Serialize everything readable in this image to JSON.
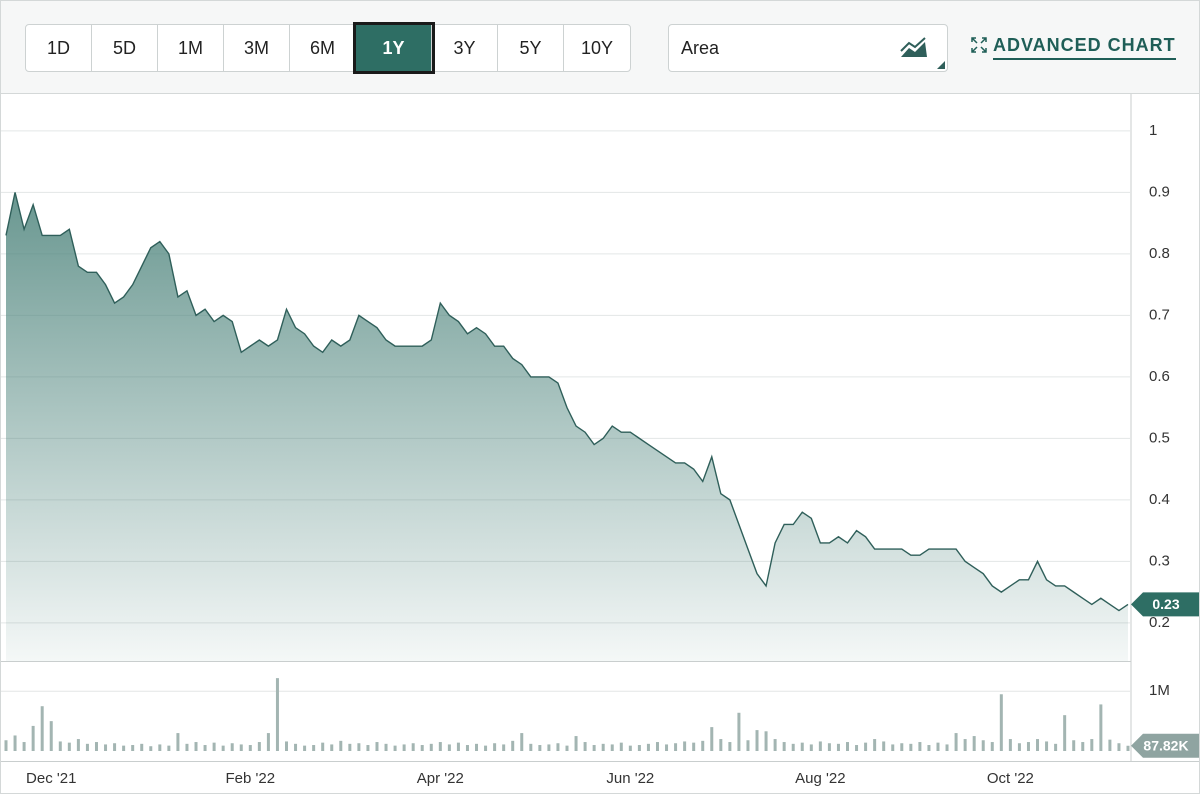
{
  "toolbar": {
    "ranges": [
      "1D",
      "5D",
      "1M",
      "3M",
      "6M",
      "1Y",
      "3Y",
      "5Y",
      "10Y"
    ],
    "selected": 5,
    "chart_type": "Area",
    "advanced_link": "ADVANCED CHART"
  },
  "chart_data": {
    "type": "area",
    "categories": [
      null,
      null,
      null,
      null,
      null,
      "Dec '21",
      null,
      null,
      null,
      null,
      null,
      null,
      null,
      null,
      null,
      null,
      null,
      null,
      null,
      null,
      null,
      null,
      null,
      null,
      null,
      null,
      null,
      "Feb '22",
      null,
      null,
      null,
      null,
      null,
      null,
      null,
      null,
      null,
      null,
      null,
      null,
      null,
      null,
      null,
      null,
      null,
      null,
      null,
      null,
      "Apr '22",
      null,
      null,
      null,
      null,
      null,
      null,
      null,
      null,
      null,
      null,
      null,
      null,
      null,
      null,
      null,
      null,
      null,
      null,
      null,
      null,
      "Jun '22",
      null,
      null,
      null,
      null,
      null,
      null,
      null,
      null,
      null,
      null,
      null,
      null,
      null,
      null,
      null,
      null,
      null,
      null,
      null,
      null,
      "Aug '22",
      null,
      null,
      null,
      null,
      null,
      null,
      null,
      null,
      null,
      null,
      null,
      null,
      null,
      null,
      null,
      null,
      null,
      null,
      null,
      null,
      "Oct '22",
      null,
      null,
      null,
      null,
      null,
      null,
      null,
      null,
      null,
      null,
      null,
      null,
      null
    ],
    "series": [
      {
        "color": "#2f5f5a",
        "values": [
          0.83,
          0.9,
          0.84,
          0.88,
          0.83,
          0.83,
          0.83,
          0.84,
          0.78,
          0.77,
          0.77,
          0.75,
          0.72,
          0.73,
          0.75,
          0.78,
          0.81,
          0.82,
          0.8,
          0.73,
          0.74,
          0.7,
          0.71,
          0.69,
          0.7,
          0.69,
          0.64,
          0.65,
          0.66,
          0.65,
          0.66,
          0.71,
          0.68,
          0.67,
          0.65,
          0.64,
          0.66,
          0.65,
          0.66,
          0.7,
          0.69,
          0.68,
          0.66,
          0.65,
          0.65,
          0.65,
          0.65,
          0.66,
          0.72,
          0.7,
          0.69,
          0.67,
          0.68,
          0.67,
          0.65,
          0.65,
          0.63,
          0.62,
          0.6,
          0.6,
          0.6,
          0.59,
          0.55,
          0.52,
          0.51,
          0.49,
          0.5,
          0.52,
          0.51,
          0.51,
          0.5,
          0.49,
          0.48,
          0.47,
          0.46,
          0.46,
          0.45,
          0.43,
          0.47,
          0.41,
          0.4,
          0.36,
          0.32,
          0.28,
          0.26,
          0.33,
          0.36,
          0.36,
          0.38,
          0.37,
          0.33,
          0.33,
          0.34,
          0.33,
          0.35,
          0.34,
          0.32,
          0.32,
          0.32,
          0.32,
          0.31,
          0.31,
          0.32,
          0.32,
          0.32,
          0.32,
          0.3,
          0.29,
          0.28,
          0.26,
          0.25,
          0.26,
          0.27,
          0.27,
          0.3,
          0.27,
          0.26,
          0.26,
          0.25,
          0.24,
          0.23,
          0.24,
          0.23,
          0.22,
          0.23
        ]
      },
      {
        "color": "#a3b5b2",
        "axis": "y2",
        "values": [
          180000,
          260000,
          150000,
          420000,
          750000,
          500000,
          160000,
          140000,
          200000,
          120000,
          150000,
          110000,
          130000,
          90000,
          100000,
          120000,
          80000,
          110000,
          90000,
          300000,
          120000,
          150000,
          100000,
          140000,
          90000,
          130000,
          110000,
          100000,
          150000,
          300000,
          1220000,
          160000,
          120000,
          90000,
          100000,
          140000,
          110000,
          170000,
          120000,
          130000,
          100000,
          150000,
          120000,
          90000,
          110000,
          130000,
          100000,
          120000,
          150000,
          110000,
          140000,
          100000,
          120000,
          90000,
          130000,
          110000,
          170000,
          300000,
          120000,
          100000,
          110000,
          130000,
          90000,
          250000,
          150000,
          100000,
          120000,
          110000,
          140000,
          90000,
          100000,
          120000,
          150000,
          110000,
          130000,
          160000,
          140000,
          170000,
          400000,
          200000,
          150000,
          640000,
          180000,
          350000,
          330000,
          200000,
          150000,
          120000,
          140000,
          110000,
          160000,
          130000,
          120000,
          150000,
          100000,
          140000,
          200000,
          160000,
          110000,
          130000,
          120000,
          150000,
          100000,
          140000,
          110000,
          300000,
          200000,
          250000,
          180000,
          150000,
          950000,
          200000,
          130000,
          150000,
          200000,
          160000,
          120000,
          600000,
          180000,
          150000,
          200000,
          780000,
          190000,
          130000,
          87820
        ]
      }
    ],
    "ylim": [
      0.138,
      1.06
    ],
    "yticks": [
      1,
      0.9,
      0.8,
      0.7,
      0.6,
      0.5,
      0.4,
      0.3,
      0.2
    ],
    "y2lim": [
      0,
      1490000
    ],
    "y2ticks": [
      {
        "value": 1000000,
        "label": "1M"
      }
    ],
    "grid": true,
    "annotations": [
      {
        "axis": "y",
        "value": 0.23,
        "label": "0.23"
      },
      {
        "axis": "y2",
        "value": 87820,
        "label": "87.82K"
      }
    ]
  }
}
